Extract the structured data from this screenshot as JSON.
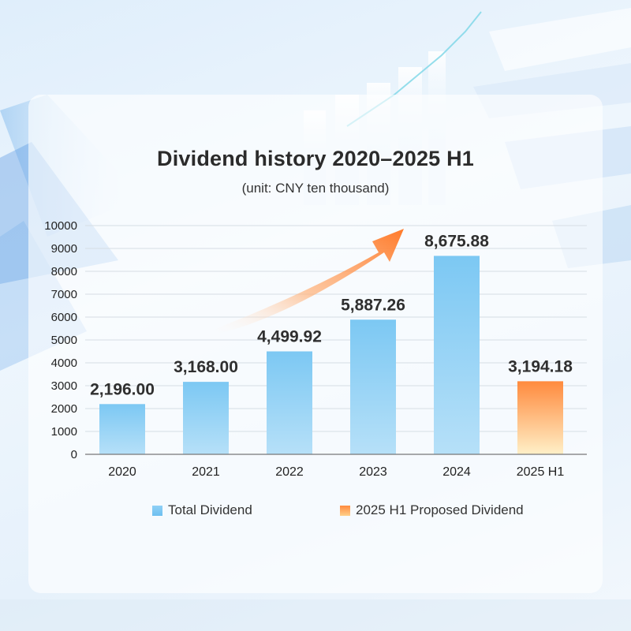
{
  "chart_data": {
    "type": "bar",
    "title": "Dividend history 2020–2025 H1",
    "subtitle": "(unit: CNY ten thousand)",
    "categories": [
      "2020",
      "2021",
      "2022",
      "2023",
      "2024",
      "2025 H1"
    ],
    "series": [
      {
        "name": "Total Dividend",
        "values": [
          2196.0,
          3168.0,
          4499.92,
          5887.26,
          8675.88,
          null
        ],
        "color": "#7cc8f3"
      },
      {
        "name": "2025 H1 Proposed Dividend",
        "values": [
          null,
          null,
          null,
          null,
          null,
          3194.18
        ],
        "color": "#ff8a3d"
      }
    ],
    "data_labels": [
      "2,196.00",
      "3,168.00",
      "4,499.92",
      "5,887.26",
      "8,675.88",
      "3,194.18"
    ],
    "ylim": [
      0,
      10000
    ],
    "yticks": [
      0,
      1000,
      2000,
      3000,
      4000,
      5000,
      6000,
      7000,
      8000,
      9000,
      10000
    ],
    "grid": true,
    "legend_position": "bottom"
  },
  "legend": {
    "total_label": "Total Dividend",
    "proposed_label": "2025 H1 Proposed Dividend"
  },
  "colors": {
    "bar_blue": "#7cc8f3",
    "bar_orange": "#ff8a3d",
    "trend_arrow": "#ff7a2a"
  },
  "icons": {
    "trend": "upward-trend-arrow-icon"
  }
}
